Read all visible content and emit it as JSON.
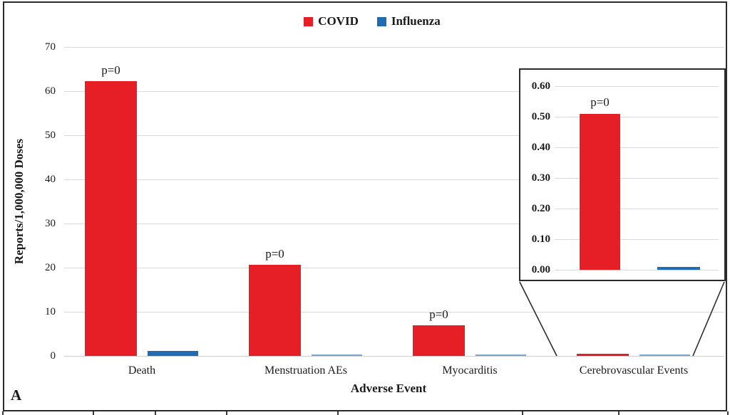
{
  "figure": {
    "panel_label": "A"
  },
  "legend": {
    "items": [
      {
        "label": "COVID",
        "color": "#e61e25"
      },
      {
        "label": "Influenza",
        "color": "#1f6cb4"
      }
    ]
  },
  "axes": {
    "y_title": "Reports/1,000,000 Doses",
    "x_title": "Adverse Event"
  },
  "chart_data": [
    {
      "type": "bar",
      "title": "",
      "categories": [
        "Death",
        "Menstruation AEs",
        "Myocarditis",
        "Cerebrovascular Events"
      ],
      "series": [
        {
          "name": "COVID",
          "color": "#e61e25",
          "values": [
            62.2,
            20.7,
            6.9,
            0.51
          ]
        },
        {
          "name": "Influenza",
          "color": "#1f6cb4",
          "values": [
            1.2,
            0.3,
            0.3,
            0.01
          ]
        }
      ],
      "bar_labels": [
        "p=0",
        "p=0",
        "p=0",
        ""
      ],
      "xlabel": "Adverse Event",
      "ylabel": "Reports/1,000,000 Doses",
      "ylim": [
        0,
        70
      ],
      "yticks": [
        0,
        10,
        20,
        30,
        40,
        50,
        60,
        70
      ],
      "grid": true,
      "legend_position": "top-center"
    },
    {
      "type": "bar",
      "subtype": "inset-zoom",
      "zoom_of": "Cerebrovascular Events",
      "categories": [
        "Cerebrovascular Events"
      ],
      "series": [
        {
          "name": "COVID",
          "color": "#e61e25",
          "values": [
            0.51
          ]
        },
        {
          "name": "Influenza",
          "color": "#1f6cb4",
          "values": [
            0.01
          ]
        }
      ],
      "bar_labels": [
        "p=0"
      ],
      "ylim": [
        0,
        0.6
      ],
      "yticks": [
        "0.00",
        "0.10",
        "0.20",
        "0.30",
        "0.40",
        "0.50",
        "0.60"
      ],
      "grid": true
    }
  ]
}
